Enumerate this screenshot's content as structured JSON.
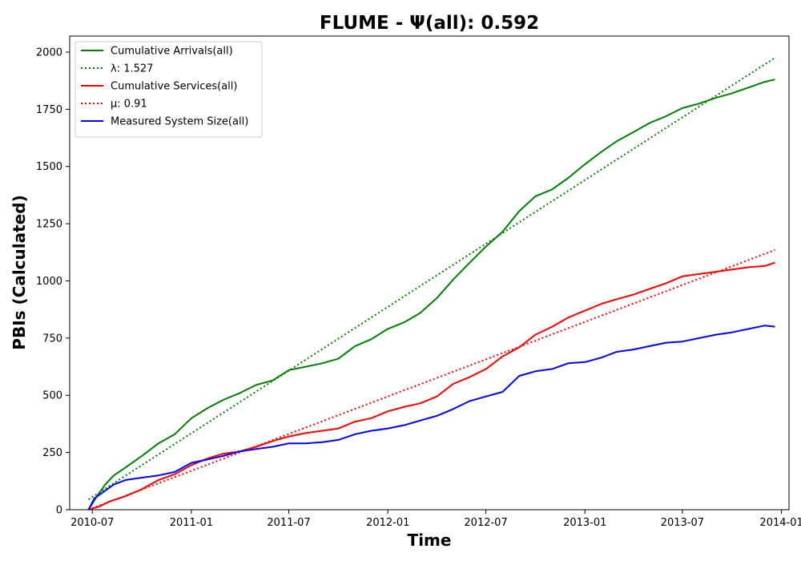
{
  "chart_data": {
    "type": "line",
    "title": "FLUME -  Ψ(all): 0.592",
    "xlabel": "Time",
    "ylabel": "PBIs (Calculated)",
    "xlim": [
      "2010-05-20",
      "2014-01-15"
    ],
    "ylim": [
      0,
      2070
    ],
    "x_ticks": [
      "2010-07",
      "2011-01",
      "2011-07",
      "2012-01",
      "2012-07",
      "2013-01",
      "2013-07",
      "2014-01"
    ],
    "y_ticks": [
      0,
      250,
      500,
      750,
      1000,
      1250,
      1500,
      1750,
      2000
    ],
    "grid": false,
    "legend_position": "top-left",
    "series": [
      {
        "name": "Cumulative Arrivals(all)",
        "style": "solid",
        "color": "#008000",
        "points": [
          [
            "2010-06-24",
            0
          ],
          [
            "2010-07-10",
            60
          ],
          [
            "2010-07-25",
            110
          ],
          [
            "2010-08-10",
            150
          ],
          [
            "2010-09-01",
            185
          ],
          [
            "2010-10-01",
            235
          ],
          [
            "2010-11-01",
            290
          ],
          [
            "2010-12-01",
            330
          ],
          [
            "2011-01-01",
            400
          ],
          [
            "2011-02-01",
            445
          ],
          [
            "2011-03-01",
            480
          ],
          [
            "2011-04-01",
            510
          ],
          [
            "2011-05-01",
            545
          ],
          [
            "2011-06-01",
            565
          ],
          [
            "2011-07-01",
            610
          ],
          [
            "2011-08-01",
            625
          ],
          [
            "2011-09-01",
            640
          ],
          [
            "2011-10-01",
            660
          ],
          [
            "2011-11-01",
            715
          ],
          [
            "2011-12-01",
            745
          ],
          [
            "2012-01-01",
            790
          ],
          [
            "2012-02-01",
            820
          ],
          [
            "2012-03-01",
            860
          ],
          [
            "2012-04-01",
            925
          ],
          [
            "2012-05-01",
            1005
          ],
          [
            "2012-06-01",
            1080
          ],
          [
            "2012-07-01",
            1150
          ],
          [
            "2012-08-01",
            1215
          ],
          [
            "2012-09-01",
            1305
          ],
          [
            "2012-10-01",
            1370
          ],
          [
            "2012-11-01",
            1400
          ],
          [
            "2012-12-01",
            1450
          ],
          [
            "2013-01-01",
            1510
          ],
          [
            "2013-02-01",
            1565
          ],
          [
            "2013-03-01",
            1610
          ],
          [
            "2013-04-01",
            1650
          ],
          [
            "2013-05-01",
            1690
          ],
          [
            "2013-06-01",
            1720
          ],
          [
            "2013-07-01",
            1755
          ],
          [
            "2013-08-01",
            1775
          ],
          [
            "2013-09-01",
            1800
          ],
          [
            "2013-10-01",
            1820
          ],
          [
            "2013-11-01",
            1845
          ],
          [
            "2013-12-01",
            1870
          ],
          [
            "2013-12-20",
            1880
          ]
        ]
      },
      {
        "name": "λ: 1.527",
        "style": "dotted",
        "color": "#008000",
        "points": [
          [
            "2010-06-24",
            45
          ],
          [
            "2013-12-20",
            1975
          ]
        ]
      },
      {
        "name": "Cumulative Services(all)",
        "style": "solid",
        "color": "#ff0000",
        "points": [
          [
            "2010-06-24",
            0
          ],
          [
            "2010-07-15",
            15
          ],
          [
            "2010-08-01",
            35
          ],
          [
            "2010-09-01",
            60
          ],
          [
            "2010-10-01",
            90
          ],
          [
            "2010-11-01",
            130
          ],
          [
            "2010-12-01",
            155
          ],
          [
            "2011-01-01",
            195
          ],
          [
            "2011-02-01",
            225
          ],
          [
            "2011-03-01",
            245
          ],
          [
            "2011-04-01",
            255
          ],
          [
            "2011-05-01",
            275
          ],
          [
            "2011-06-01",
            300
          ],
          [
            "2011-07-01",
            320
          ],
          [
            "2011-08-01",
            335
          ],
          [
            "2011-09-01",
            345
          ],
          [
            "2011-10-01",
            355
          ],
          [
            "2011-11-01",
            385
          ],
          [
            "2011-12-01",
            400
          ],
          [
            "2012-01-01",
            430
          ],
          [
            "2012-02-01",
            450
          ],
          [
            "2012-03-01",
            465
          ],
          [
            "2012-04-01",
            495
          ],
          [
            "2012-05-01",
            550
          ],
          [
            "2012-06-01",
            580
          ],
          [
            "2012-07-01",
            615
          ],
          [
            "2012-08-01",
            670
          ],
          [
            "2012-09-01",
            710
          ],
          [
            "2012-10-01",
            765
          ],
          [
            "2012-11-01",
            800
          ],
          [
            "2012-12-01",
            840
          ],
          [
            "2013-01-01",
            870
          ],
          [
            "2013-02-01",
            900
          ],
          [
            "2013-03-01",
            920
          ],
          [
            "2013-04-01",
            940
          ],
          [
            "2013-05-01",
            965
          ],
          [
            "2013-06-01",
            990
          ],
          [
            "2013-07-01",
            1020
          ],
          [
            "2013-08-01",
            1030
          ],
          [
            "2013-09-01",
            1040
          ],
          [
            "2013-10-01",
            1050
          ],
          [
            "2013-11-01",
            1060
          ],
          [
            "2013-12-01",
            1065
          ],
          [
            "2013-12-20",
            1080
          ]
        ]
      },
      {
        "name": "μ: 0.91",
        "style": "dotted",
        "color": "#ff0000",
        "points": [
          [
            "2010-06-24",
            0
          ],
          [
            "2013-12-20",
            1135
          ]
        ]
      },
      {
        "name": "Measured System Size(all)",
        "style": "solid",
        "color": "#0000ff",
        "points": [
          [
            "2010-06-24",
            0
          ],
          [
            "2010-07-05",
            50
          ],
          [
            "2010-07-20",
            75
          ],
          [
            "2010-08-10",
            110
          ],
          [
            "2010-09-01",
            130
          ],
          [
            "2010-10-01",
            140
          ],
          [
            "2010-11-01",
            150
          ],
          [
            "2010-12-01",
            165
          ],
          [
            "2011-01-01",
            205
          ],
          [
            "2011-02-01",
            220
          ],
          [
            "2011-03-01",
            235
          ],
          [
            "2011-04-01",
            255
          ],
          [
            "2011-05-01",
            265
          ],
          [
            "2011-06-01",
            275
          ],
          [
            "2011-07-01",
            290
          ],
          [
            "2011-08-01",
            290
          ],
          [
            "2011-09-01",
            295
          ],
          [
            "2011-10-01",
            305
          ],
          [
            "2011-11-01",
            330
          ],
          [
            "2011-12-01",
            345
          ],
          [
            "2012-01-01",
            355
          ],
          [
            "2012-02-01",
            370
          ],
          [
            "2012-03-01",
            390
          ],
          [
            "2012-04-01",
            410
          ],
          [
            "2012-05-01",
            440
          ],
          [
            "2012-06-01",
            475
          ],
          [
            "2012-07-01",
            495
          ],
          [
            "2012-08-01",
            515
          ],
          [
            "2012-09-01",
            585
          ],
          [
            "2012-10-01",
            605
          ],
          [
            "2012-11-01",
            615
          ],
          [
            "2012-12-01",
            640
          ],
          [
            "2013-01-01",
            645
          ],
          [
            "2013-02-01",
            665
          ],
          [
            "2013-03-01",
            690
          ],
          [
            "2013-04-01",
            700
          ],
          [
            "2013-05-01",
            715
          ],
          [
            "2013-06-01",
            730
          ],
          [
            "2013-07-01",
            735
          ],
          [
            "2013-08-01",
            750
          ],
          [
            "2013-09-01",
            765
          ],
          [
            "2013-10-01",
            775
          ],
          [
            "2013-11-01",
            790
          ],
          [
            "2013-12-01",
            805
          ],
          [
            "2013-12-20",
            800
          ]
        ]
      }
    ]
  }
}
